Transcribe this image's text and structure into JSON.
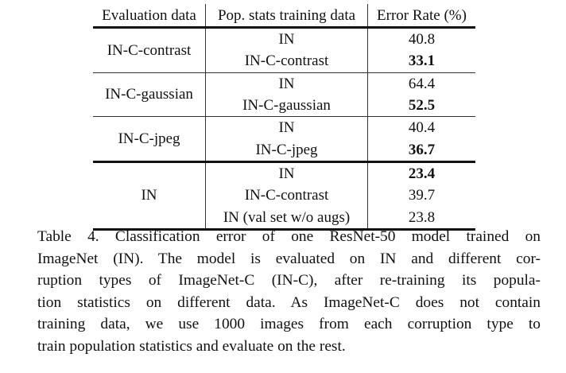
{
  "table": {
    "headers": [
      "Evaluation data",
      "Pop. stats training data",
      "Error Rate (%)"
    ],
    "groups": [
      {
        "eval": "IN-C-contrast",
        "rows": [
          {
            "train": "IN",
            "error": "40.8",
            "bold": false
          },
          {
            "train": "IN-C-contrast",
            "error": "33.1",
            "bold": true
          }
        ]
      },
      {
        "eval": "IN-C-gaussian",
        "rows": [
          {
            "train": "IN",
            "error": "64.4",
            "bold": false
          },
          {
            "train": "IN-C-gaussian",
            "error": "52.5",
            "bold": true
          }
        ]
      },
      {
        "eval": "IN-C-jpeg",
        "rows": [
          {
            "train": "IN",
            "error": "40.4",
            "bold": false
          },
          {
            "train": "IN-C-jpeg",
            "error": "36.7",
            "bold": true
          }
        ]
      },
      {
        "eval": "IN",
        "rows": [
          {
            "train": "IN",
            "error": "23.4",
            "bold": true
          },
          {
            "train": "IN-C-contrast",
            "error": "39.7",
            "bold": false
          },
          {
            "train": "IN (val set w/o augs)",
            "error": "23.8",
            "bold": false
          }
        ]
      }
    ]
  },
  "caption": {
    "lines": [
      "Table 4. Classification error of one ResNet-50 model trained on",
      "ImageNet (IN). The model is evaluated on IN and different cor-",
      "ruption types of ImageNet-C (IN-C), after re-training its popula-",
      "tion statistics on different data. As ImageNet-C does not contain",
      "training data, we use 1000 images from each corruption type to",
      "train population statistics and evaluate on the rest."
    ]
  }
}
